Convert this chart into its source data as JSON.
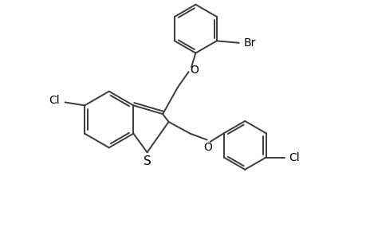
{
  "background_color": "#ffffff",
  "line_color": "#3a3a3a",
  "line_width": 1.4,
  "text_color": "#000000",
  "font_size": 10,
  "figsize": [
    4.6,
    3.0
  ],
  "dpi": 100,
  "xlim": [
    0,
    9.2
  ],
  "ylim": [
    0,
    6.0
  ]
}
